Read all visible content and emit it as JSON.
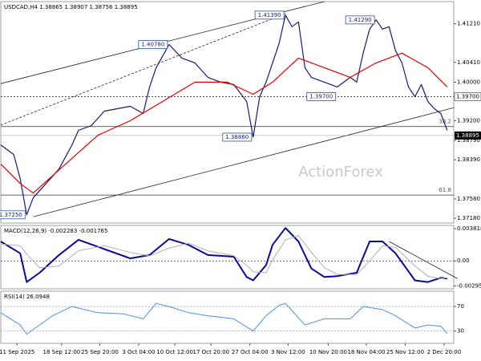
{
  "chart_data": [
    {
      "type": "line",
      "title": "USDCAD,H4 1.38865 1.38907 1.38756 1.38895",
      "watermark": "ActionForex",
      "xlim": [
        0,
        70
      ],
      "ylim": [
        1.3708,
        1.4167
      ],
      "yticks": [
        {
          "value": 1.4121,
          "label": "1.41210"
        },
        {
          "value": 1.4041,
          "label": "1.40410"
        },
        {
          "value": 1.4,
          "label": "1.40000"
        },
        {
          "value": 1.392,
          "label": "1.39200"
        },
        {
          "value": 1.3879,
          "label": "1.38790"
        },
        {
          "value": 1.3839,
          "label": "1.38390"
        },
        {
          "value": 1.3758,
          "label": "1.37580"
        },
        {
          "value": 1.3718,
          "label": "1.37180"
        }
      ],
      "series": [
        {
          "color": "#1a1a6e",
          "x": [
            0,
            2,
            3,
            4,
            5,
            7,
            9,
            11,
            12,
            14,
            16,
            18,
            20,
            22,
            23,
            24,
            26,
            28,
            30,
            32,
            34,
            36,
            38,
            39,
            40,
            41,
            42,
            43,
            44,
            45,
            46,
            47,
            48,
            50,
            52,
            54,
            55,
            56,
            57,
            58,
            59,
            60,
            61,
            62,
            63,
            64,
            65,
            66,
            67,
            68,
            69
          ],
          "values": [
            1.387,
            1.385,
            1.38,
            1.3725,
            1.376,
            1.379,
            1.382,
            1.387,
            1.39,
            1.391,
            1.394,
            1.3945,
            1.395,
            1.3935,
            1.399,
            1.403,
            1.4078,
            1.405,
            1.404,
            1.401,
            1.4,
            1.3995,
            1.396,
            1.3886,
            1.397,
            1.4,
            1.404,
            1.408,
            1.4139,
            1.4115,
            1.4125,
            1.403,
            1.401,
            1.4,
            1.399,
            1.401,
            1.4,
            1.406,
            1.411,
            1.4129,
            1.411,
            1.4115,
            1.4065,
            1.404,
            1.399,
            1.397,
            1.3995,
            1.396,
            1.3945,
            1.3935,
            1.39
          ]
        },
        {
          "color": "#e00000",
          "x": [
            0,
            3,
            5,
            10,
            15,
            20,
            25,
            30,
            35,
            39,
            42,
            46,
            50,
            54,
            58,
            62,
            66,
            69
          ],
          "values": [
            1.383,
            1.379,
            1.377,
            1.383,
            1.389,
            1.392,
            1.396,
            1.4,
            1.4,
            1.3975,
            1.4,
            1.405,
            1.403,
            1.401,
            1.404,
            1.406,
            1.403,
            1.399
          ]
        }
      ],
      "lines": [
        {
          "x": [
            0,
            50
          ],
          "values": [
            1.3997,
            1.4167
          ],
          "dash": false
        },
        {
          "x": [
            5,
            70
          ],
          "values": [
            1.3721,
            1.3947
          ],
          "dash": false
        },
        {
          "x": [
            0,
            44
          ],
          "values": [
            1.3911,
            1.4142
          ],
          "dash": true
        }
      ],
      "levels": [
        {
          "value": 1.397,
          "label": "1.39700",
          "style": "dotted"
        },
        {
          "value": 1.3908,
          "fib": 38.2,
          "style": "solid"
        },
        {
          "value": 1.3766,
          "fib": 61.8,
          "style": "solid"
        }
      ],
      "annotations": [
        {
          "x": 4,
          "value": 1.3725,
          "label": "1.37250"
        },
        {
          "x": 26,
          "value": 1.4078,
          "label": "1.40780"
        },
        {
          "x": 39,
          "value": 1.3886,
          "label": "1.38860"
        },
        {
          "x": 44,
          "value": 1.4139,
          "label": "1.41390"
        },
        {
          "x": 58,
          "value": 1.4129,
          "label": "1.41290"
        },
        {
          "x": 52,
          "value": 1.397,
          "label": "1.39700"
        }
      ],
      "last": {
        "value": 1.38895,
        "label": "1.38895"
      }
    },
    {
      "type": "line",
      "title": "MACD(12,26,9) -0.002283 -0.001765",
      "xlim": [
        0,
        70
      ],
      "ylim": [
        -0.0033,
        0.0042
      ],
      "yticks": [
        0.003818,
        {
          "value": 0,
          "label": "0.00"
        },
        -0.002957
      ],
      "series": [
        {
          "color": "#0a0a8c",
          "width": 2,
          "x": [
            0,
            3,
            4,
            6,
            9,
            12,
            16,
            20,
            23,
            26,
            29,
            32,
            36,
            38,
            39,
            41,
            42,
            44,
            46,
            48,
            50,
            52,
            55,
            57,
            59,
            61,
            64,
            66,
            68,
            69
          ],
          "values": [
            0.0023,
            0.0009,
            -0.0025,
            -0.0014,
            0.0007,
            0.0025,
            0.0014,
            0.0003,
            0.0007,
            0.0026,
            0.0019,
            0.0007,
            0.0005,
            -0.0019,
            -0.0023,
            -0.0005,
            0.0019,
            0.0039,
            0.0023,
            -0.0009,
            -0.0019,
            -0.0018,
            -0.0014,
            0.0023,
            0.0023,
            0.0009,
            -0.0023,
            -0.0025,
            -0.002,
            -0.0021
          ]
        },
        {
          "color": "#b0b0b0",
          "width": 1,
          "x": [
            0,
            3,
            4,
            6,
            9,
            12,
            16,
            20,
            23,
            26,
            29,
            32,
            36,
            38,
            39,
            41,
            42,
            44,
            46,
            48,
            50,
            52,
            55,
            57,
            59,
            61,
            64,
            66,
            68,
            69
          ],
          "values": [
            0.002,
            0.0018,
            0.0008,
            -0.0008,
            -0.0006,
            0.0012,
            0.0018,
            0.001,
            0.0006,
            0.0015,
            0.0021,
            0.0012,
            0.0006,
            -0.0005,
            -0.0013,
            -0.0014,
            0.0001,
            0.0025,
            0.003,
            0.001,
            -0.0008,
            -0.0016,
            -0.0016,
            0,
            0.0018,
            0.0016,
            -0.0006,
            -0.0018,
            -0.0021,
            -0.002
          ]
        }
      ],
      "lines": [
        {
          "x": [
            60,
            70.6
          ],
          "values": [
            0.0023,
            -0.0021
          ],
          "dash": false
        }
      ],
      "levels": [
        {
          "value": 0,
          "style": "dotted"
        }
      ]
    },
    {
      "type": "line",
      "title": "RSI(14) 26.0948",
      "xlim": [
        0,
        70
      ],
      "ylim": [
        10,
        95
      ],
      "yticks": [
        70,
        30
      ],
      "grid": true,
      "series": [
        {
          "color": "#4a90e2",
          "width": 1,
          "x": [
            0,
            3,
            4,
            8,
            11,
            15,
            19,
            22,
            24,
            26,
            29,
            32,
            36,
            39,
            41,
            43,
            44,
            47,
            50,
            54,
            56,
            59,
            61,
            64,
            66,
            68,
            69
          ],
          "values": [
            60,
            40,
            25,
            55,
            70,
            60,
            58,
            50,
            75,
            70,
            60,
            55,
            50,
            30,
            55,
            72,
            75,
            40,
            50,
            50,
            70,
            65,
            55,
            35,
            40,
            38,
            26
          ]
        }
      ],
      "xticks": [
        {
          "value": 2.5,
          "label": "11 Sep 2025"
        },
        {
          "value": 9.4,
          "label": "18 Sep 12:00"
        },
        {
          "value": 15.3,
          "label": "25 Sep 20:00"
        },
        {
          "value": 21.3,
          "label": "3 Oct 04:00"
        },
        {
          "value": 26.9,
          "label": "10 Oct 12:00"
        },
        {
          "value": 32.5,
          "label": "17 Oct 20:00"
        },
        {
          "value": 38.5,
          "label": "27 Oct 04:00"
        },
        {
          "value": 44.4,
          "label": "3 Nov 12:00"
        },
        {
          "value": 50.6,
          "label": "10 Nov 20:00"
        },
        {
          "value": 56.5,
          "label": "18 Nov 04:00"
        },
        {
          "value": 62.5,
          "label": "25 Nov 12:00"
        },
        {
          "value": 68.5,
          "label": "2 Dec 20:00"
        }
      ]
    }
  ]
}
